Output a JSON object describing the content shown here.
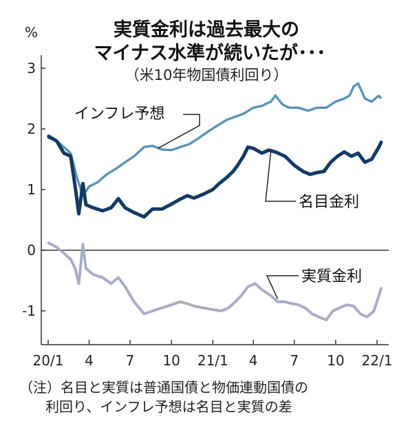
{
  "header": {
    "unit": "%",
    "title_line1": "実質金利は過去最大の",
    "title_line2": "マイナス水準が続いたが･･･",
    "subtitle": "（米10年物国債利回り）"
  },
  "notes": {
    "line1": "（注）名目と実質は普通国債と物価連動国債の",
    "line2": "利回り、インフレ予想は名目と実質の差"
  },
  "chart_data": {
    "type": "line",
    "x_tick_labels": [
      "20/1",
      "4",
      "7",
      "10",
      "21/1",
      "4",
      "7",
      "10",
      "22/1"
    ],
    "y_ticks": [
      3,
      2,
      1,
      0,
      -1
    ],
    "y_tick_labels": [
      "3",
      "2",
      "1",
      "0",
      "-1"
    ],
    "ylim": [
      -1.6,
      3.2
    ],
    "grid": false,
    "colors": {
      "nominal": "#123a63",
      "inflation": "#5a93b5",
      "real": "#a9adc3",
      "axis": "#333333"
    },
    "series": [
      {
        "key": "nominal",
        "name": "名目金利",
        "x": [
          "2020-01-02",
          "2020-01-20",
          "2020-02-05",
          "2020-02-20",
          "2020-03-01",
          "2020-03-09",
          "2020-03-18",
          "2020-03-25",
          "2020-04-10",
          "2020-05-01",
          "2020-05-20",
          "2020-06-05",
          "2020-06-20",
          "2020-07-10",
          "2020-08-01",
          "2020-08-20",
          "2020-09-10",
          "2020-10-01",
          "2020-10-20",
          "2020-11-05",
          "2020-11-20",
          "2020-12-10",
          "2021-01-01",
          "2021-01-15",
          "2021-02-01",
          "2021-02-15",
          "2021-02-25",
          "2021-03-10",
          "2021-03-20",
          "2021-04-01",
          "2021-04-20",
          "2021-05-05",
          "2021-05-20",
          "2021-06-10",
          "2021-06-20",
          "2021-07-01",
          "2021-07-20",
          "2021-08-05",
          "2021-08-20",
          "2021-09-05",
          "2021-09-20",
          "2021-10-05",
          "2021-10-20",
          "2021-11-05",
          "2021-11-20",
          "2021-12-05",
          "2021-12-20",
          "2022-01-05",
          "2022-01-10"
        ],
        "y": [
          1.88,
          1.8,
          1.6,
          1.55,
          1.05,
          0.6,
          1.1,
          0.75,
          0.7,
          0.65,
          0.7,
          0.85,
          0.7,
          0.62,
          0.55,
          0.68,
          0.68,
          0.76,
          0.84,
          0.9,
          0.86,
          0.92,
          1.0,
          1.1,
          1.2,
          1.3,
          1.4,
          1.55,
          1.7,
          1.68,
          1.6,
          1.65,
          1.62,
          1.55,
          1.48,
          1.4,
          1.3,
          1.25,
          1.28,
          1.3,
          1.45,
          1.55,
          1.62,
          1.55,
          1.6,
          1.45,
          1.5,
          1.7,
          1.78
        ]
      },
      {
        "key": "inflation",
        "name": "インフレ予想",
        "x": [
          "2020-01-02",
          "2020-01-20",
          "2020-02-05",
          "2020-02-20",
          "2020-03-05",
          "2020-03-18",
          "2020-04-01",
          "2020-04-20",
          "2020-05-10",
          "2020-06-01",
          "2020-06-20",
          "2020-07-10",
          "2020-08-01",
          "2020-08-20",
          "2020-09-10",
          "2020-10-01",
          "2020-10-20",
          "2020-11-10",
          "2020-12-01",
          "2020-12-20",
          "2021-01-10",
          "2021-02-01",
          "2021-02-20",
          "2021-03-10",
          "2021-04-01",
          "2021-04-20",
          "2021-05-10",
          "2021-05-20",
          "2021-06-05",
          "2021-06-20",
          "2021-07-10",
          "2021-08-01",
          "2021-08-20",
          "2021-09-10",
          "2021-10-01",
          "2021-10-20",
          "2021-11-01",
          "2021-11-10",
          "2021-11-20",
          "2021-12-05",
          "2021-12-20",
          "2022-01-05",
          "2022-01-10"
        ],
        "y": [
          1.85,
          1.8,
          1.7,
          1.6,
          1.2,
          0.9,
          1.05,
          1.12,
          1.25,
          1.35,
          1.45,
          1.55,
          1.7,
          1.72,
          1.66,
          1.65,
          1.7,
          1.75,
          1.85,
          1.95,
          2.05,
          2.15,
          2.2,
          2.25,
          2.35,
          2.38,
          2.45,
          2.55,
          2.4,
          2.35,
          2.35,
          2.3,
          2.35,
          2.35,
          2.45,
          2.5,
          2.55,
          2.7,
          2.75,
          2.5,
          2.45,
          2.55,
          2.5
        ]
      },
      {
        "key": "real",
        "name": "実質金利",
        "x": [
          "2020-01-02",
          "2020-01-20",
          "2020-02-05",
          "2020-02-20",
          "2020-03-01",
          "2020-03-09",
          "2020-03-18",
          "2020-03-25",
          "2020-04-10",
          "2020-05-01",
          "2020-05-20",
          "2020-06-05",
          "2020-06-20",
          "2020-07-10",
          "2020-08-01",
          "2020-08-20",
          "2020-09-10",
          "2020-10-01",
          "2020-10-20",
          "2020-11-05",
          "2020-11-20",
          "2020-12-10",
          "2021-01-01",
          "2021-01-20",
          "2021-02-05",
          "2021-02-20",
          "2021-03-05",
          "2021-03-20",
          "2021-04-05",
          "2021-04-20",
          "2021-05-10",
          "2021-05-25",
          "2021-06-10",
          "2021-06-25",
          "2021-07-10",
          "2021-07-25",
          "2021-08-10",
          "2021-08-25",
          "2021-09-10",
          "2021-09-25",
          "2021-10-10",
          "2021-10-25",
          "2021-11-10",
          "2021-11-25",
          "2021-12-10",
          "2021-12-25",
          "2022-01-05",
          "2022-01-10"
        ],
        "y": [
          0.12,
          0.05,
          -0.05,
          -0.15,
          -0.3,
          -0.55,
          0.1,
          -0.3,
          -0.4,
          -0.45,
          -0.55,
          -0.45,
          -0.6,
          -0.85,
          -1.05,
          -1.0,
          -0.95,
          -0.9,
          -0.85,
          -0.88,
          -0.92,
          -0.95,
          -0.98,
          -1.0,
          -0.95,
          -0.85,
          -0.75,
          -0.6,
          -0.55,
          -0.65,
          -0.75,
          -0.85,
          -0.85,
          -0.88,
          -0.9,
          -0.95,
          -1.05,
          -1.1,
          -1.15,
          -1.0,
          -0.95,
          -0.9,
          -0.92,
          -1.05,
          -1.1,
          -1.0,
          -0.75,
          -0.63
        ]
      }
    ]
  }
}
